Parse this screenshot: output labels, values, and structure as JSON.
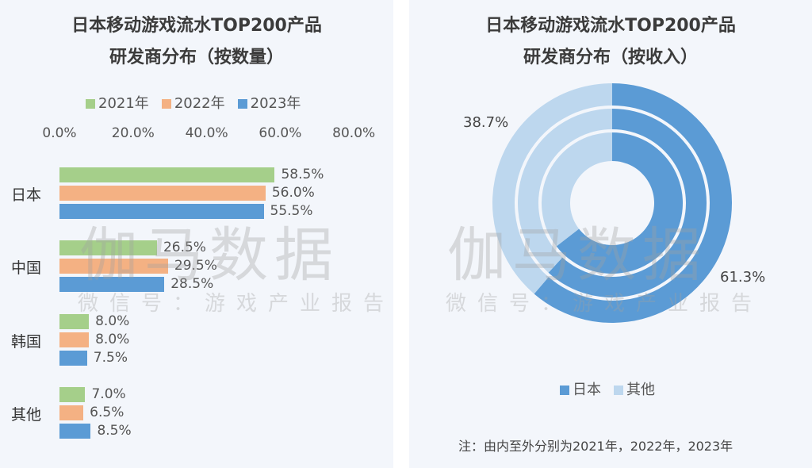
{
  "watermark": {
    "main": "伽马数据",
    "sub": "微信号：游戏产业报告"
  },
  "chart_data": [
    {
      "type": "bar",
      "orientation": "horizontal",
      "title_line1": "日本移动游戏流水TOP200产品",
      "title_line2": "研发商分布（按数量）",
      "categories": [
        "日本",
        "中国",
        "韩国",
        "其他"
      ],
      "series": [
        {
          "name": "2021年",
          "color": "#a5cf8a",
          "values": [
            58.5,
            26.5,
            8.0,
            7.0
          ]
        },
        {
          "name": "2022年",
          "color": "#f4b183",
          "values": [
            56.0,
            29.5,
            8.0,
            6.5
          ]
        },
        {
          "name": "2023年",
          "color": "#5b9bd5",
          "values": [
            55.5,
            28.5,
            7.5,
            8.5
          ]
        }
      ],
      "xlim": [
        0,
        80
      ],
      "x_ticks": [
        "0.0%",
        "20.0%",
        "40.0%",
        "60.0%",
        "80.0%"
      ],
      "tick_values": [
        0,
        20,
        40,
        60,
        80
      ],
      "legend": "top",
      "grid": false
    },
    {
      "type": "pie",
      "variant": "multi-ring donut",
      "title_line1": "日本移动游戏流水TOP200产品",
      "title_line2": "研发商分布（按收入）",
      "categories": [
        "日本",
        "其他"
      ],
      "colors": [
        "#5b9bd5",
        "#bdd7ee"
      ],
      "rings": [
        {
          "year": "2021年",
          "values": [
            64.5,
            35.5
          ]
        },
        {
          "year": "2022年",
          "values": [
            61.8,
            38.2
          ]
        },
        {
          "year": "2023年",
          "values": [
            61.3,
            38.7
          ]
        }
      ],
      "labels": {
        "japan": "61.3%",
        "other": "38.7%"
      },
      "legend": "bottom",
      "note": "注：由内至外分别为2021年，2022年，2023年"
    }
  ]
}
